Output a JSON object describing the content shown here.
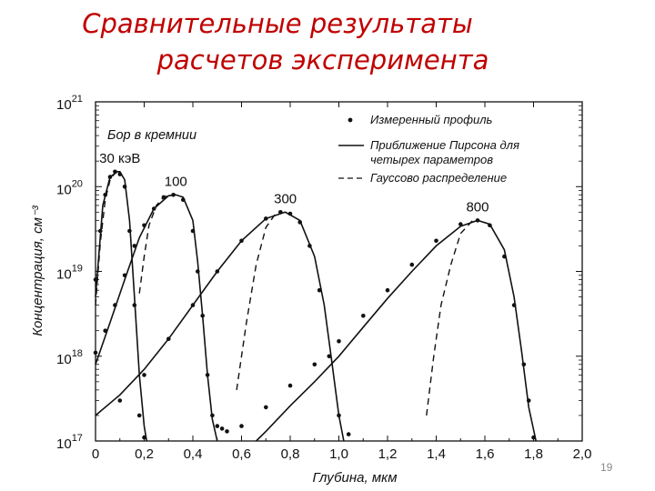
{
  "slide": {
    "title_line1": "Сравнительные результаты",
    "title_line2": "расчетов эксперимента",
    "page_number": "19"
  },
  "chart_data": {
    "type": "line",
    "y_scale": "log",
    "title": "Бор в кремнии",
    "xlabel": "Глубина, мкм",
    "ylabel": "Концентрация, см⁻³",
    "xlim": [
      0,
      2.0
    ],
    "ylim": [
      1e+17,
      1e+21
    ],
    "x_ticks": [
      0,
      0.2,
      0.4,
      0.6,
      0.8,
      1.0,
      1.2,
      1.4,
      1.6,
      1.8,
      2.0
    ],
    "x_tick_labels": [
      "0",
      "0,2",
      "0,4",
      "0,6",
      "0,8",
      "1,0",
      "1,2",
      "1,4",
      "1,6",
      "1,8",
      "2,0"
    ],
    "y_tick_base": "10",
    "y_tick_exponents": [
      "17",
      "18",
      "19",
      "20",
      "21"
    ],
    "legend": {
      "position": "top-right",
      "items": [
        {
          "style": "dots",
          "label": "Измеренный профиль"
        },
        {
          "style": "solid",
          "label": "Приближение Пирсона для четырех параметров"
        },
        {
          "style": "dashed",
          "label": "Гауссово распределение"
        }
      ]
    },
    "series": [
      {
        "name": "30 кэВ",
        "peak_x": 0.1,
        "peak_y": 1.5e+20,
        "measured": {
          "x": [
            0.0,
            0.02,
            0.04,
            0.06,
            0.08,
            0.1,
            0.12,
            0.14,
            0.16,
            0.18,
            0.2
          ],
          "y": [
            8e+18,
            3e+19,
            8e+19,
            1.3e+20,
            1.5e+20,
            1.4e+20,
            1e+20,
            3e+19,
            4e+18,
            2e+17,
            1.1e+17
          ]
        },
        "pearson": {
          "x": [
            0.0,
            0.03,
            0.06,
            0.09,
            0.1,
            0.12,
            0.14,
            0.16,
            0.18,
            0.2,
            0.21
          ],
          "y": [
            5e+18,
            6e+19,
            1.3e+20,
            1.5e+20,
            1.5e+20,
            1.2e+20,
            4e+19,
            5e+18,
            6e+17,
            1.5e+17,
            1e+17
          ]
        },
        "gaussian": {
          "x": [
            0.0,
            0.02,
            0.04,
            0.06,
            0.08
          ],
          "y": [
            4e+18,
            2.2e+19,
            7e+19,
            1.2e+20,
            1.45e+20
          ]
        }
      },
      {
        "name": "100",
        "peak_x": 0.33,
        "peak_y": 8e+19,
        "measured": {
          "x": [
            0.0,
            0.04,
            0.08,
            0.12,
            0.16,
            0.2,
            0.24,
            0.28,
            0.32,
            0.36,
            0.4,
            0.42,
            0.44,
            0.46,
            0.48,
            0.5,
            0.52,
            0.54
          ],
          "y": [
            1.1e+18,
            2e+18,
            4e+18,
            9e+18,
            2e+19,
            3.5e+19,
            5.5e+19,
            7.5e+19,
            8e+19,
            7e+19,
            3e+19,
            1e+19,
            3e+18,
            6e+17,
            2e+17,
            1.5e+17,
            1.4e+17,
            1.3e+17
          ]
        },
        "pearson": {
          "x": [
            0.0,
            0.06,
            0.12,
            0.18,
            0.24,
            0.3,
            0.33,
            0.36,
            0.4,
            0.42,
            0.44,
            0.46,
            0.48,
            0.5
          ],
          "y": [
            8e+17,
            2.5e+18,
            8e+18,
            2.5e+19,
            5.5e+19,
            7.8e+19,
            8e+19,
            7.5e+19,
            4e+19,
            1.3e+19,
            3e+18,
            6e+17,
            1.8e+17,
            1e+17
          ]
        },
        "gaussian": {
          "x": [
            0.18,
            0.2,
            0.22,
            0.25,
            0.28,
            0.31
          ],
          "y": [
            5.5e+18,
            1.5e+19,
            3.5e+19,
            6e+19,
            7.5e+19,
            8e+19
          ]
        }
      },
      {
        "name": "300",
        "peak_x": 0.78,
        "peak_y": 5e+19,
        "measured": {
          "x": [
            0.1,
            0.2,
            0.3,
            0.4,
            0.5,
            0.6,
            0.7,
            0.76,
            0.8,
            0.84,
            0.88,
            0.92,
            0.96,
            1.0,
            1.04
          ],
          "y": [
            3e+17,
            6e+17,
            1.6e+18,
            4e+18,
            1e+19,
            2.3e+19,
            4.2e+19,
            5e+19,
            4.8e+19,
            3.8e+19,
            2e+19,
            6e+18,
            1e+18,
            2e+17,
            1.2e+17
          ]
        },
        "pearson": {
          "x": [
            0.0,
            0.1,
            0.2,
            0.3,
            0.4,
            0.5,
            0.6,
            0.7,
            0.78,
            0.84,
            0.9,
            0.94,
            0.97,
            1.0,
            1.02
          ],
          "y": [
            2e+17,
            3.5e+17,
            7e+17,
            1.6e+18,
            4e+18,
            1e+19,
            2.3e+19,
            4.2e+19,
            5e+19,
            4e+19,
            1.5e+19,
            4e+18,
            9e+17,
            2e+17,
            1e+17
          ]
        },
        "gaussian": {
          "x": [
            0.58,
            0.62,
            0.66,
            0.7,
            0.74
          ],
          "y": [
            4e+17,
            2.5e+18,
            1.2e+19,
            3.3e+19,
            4.8e+19
          ]
        }
      },
      {
        "name": "800",
        "peak_x": 1.57,
        "peak_y": 4e+19,
        "measured": {
          "x": [
            0.6,
            0.7,
            0.8,
            0.9,
            1.0,
            1.1,
            1.2,
            1.3,
            1.4,
            1.5,
            1.57,
            1.62,
            1.68,
            1.72,
            1.76,
            1.78,
            1.8
          ],
          "y": [
            1.5e+17,
            2.5e+17,
            4.5e+17,
            8e+17,
            1.5e+18,
            3e+18,
            6e+18,
            1.2e+19,
            2.3e+19,
            3.6e+19,
            4e+19,
            3.5e+19,
            1.5e+19,
            4e+18,
            8e+17,
            3e+17,
            1.1e+17
          ]
        },
        "pearson": {
          "x": [
            0.66,
            0.7,
            0.8,
            0.9,
            1.0,
            1.1,
            1.2,
            1.3,
            1.4,
            1.5,
            1.57,
            1.62,
            1.68,
            1.72,
            1.75,
            1.78,
            1.81
          ],
          "y": [
            1e+17,
            1.3e+17,
            2.6e+17,
            5e+17,
            1e+18,
            2.2e+18,
            4.8e+18,
            1e+19,
            2e+19,
            3.4e+19,
            4e+19,
            3.6e+19,
            1.8e+19,
            5e+18,
            1.2e+18,
            2.5e+17,
            1e+17
          ]
        },
        "gaussian": {
          "x": [
            1.36,
            1.39,
            1.42,
            1.46,
            1.5,
            1.55
          ],
          "y": [
            2e+17,
            1e+18,
            4e+18,
            1.2e+19,
            2.8e+19,
            4e+19
          ]
        }
      }
    ]
  }
}
